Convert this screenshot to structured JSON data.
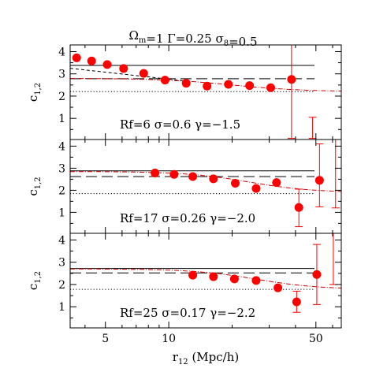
{
  "chart_data": {
    "type": "scatter",
    "title": "Ωm=1  Γ=0.25  σ8=0.5",
    "title_parts": {
      "omega_symbol": "Ω",
      "omega_sub": "m",
      "omega_val": "=1",
      "gamma": "Γ=0.25",
      "sigma_symbol": "σ",
      "sigma_sub": "8",
      "sigma_val": "=0.5"
    },
    "xlabel": {
      "base": "r",
      "sub": "12",
      "unit": "(Mpc/h)"
    },
    "xscale": "log",
    "xlim": [
      3.4,
      66
    ],
    "x_ticks": [
      5,
      10,
      50
    ],
    "colors": {
      "points": "#ff0000",
      "model": "#cc0000",
      "lines": "#000000"
    },
    "panels": [
      {
        "ylabel": {
          "base": "c",
          "sub": "1,2"
        },
        "ylim": [
          0.05,
          4.3
        ],
        "y_ticks": [
          1,
          2,
          3,
          4
        ],
        "annotation": "Rf=6   σ=0.6  γ=−1.5",
        "points": [
          {
            "x": 3.65,
            "y": 3.72
          },
          {
            "x": 4.3,
            "y": 3.58
          },
          {
            "x": 5.1,
            "y": 3.42
          },
          {
            "x": 6.1,
            "y": 3.24
          },
          {
            "x": 7.6,
            "y": 3.02
          },
          {
            "x": 9.6,
            "y": 2.72
          },
          {
            "x": 12.1,
            "y": 2.58
          },
          {
            "x": 15.2,
            "y": 2.45
          },
          {
            "x": 19.2,
            "y": 2.53
          },
          {
            "x": 24.2,
            "y": 2.47
          },
          {
            "x": 30.5,
            "y": 2.38
          },
          {
            "x": 38.3,
            "y": 2.75,
            "err_low": 0.1,
            "err_high": 4.3
          },
          {
            "x": 48.2,
            "err_low": 0.1,
            "err_high": 1.05
          }
        ],
        "hlines": {
          "solid": 3.38,
          "long_dash": 2.78,
          "dotted": 2.2
        },
        "model_curve": {
          "start": 2.8,
          "end": 2.2,
          "x_mid": 20,
          "width": 0.17
        },
        "short_dash": {
          "x0": 3.4,
          "y0": 3.25,
          "x1": 12,
          "y1": 2.68
        }
      },
      {
        "ylabel": {
          "base": "c",
          "sub": "1,2"
        },
        "ylim": [
          0.05,
          4.3
        ],
        "y_ticks": [
          1,
          2,
          3,
          4
        ],
        "annotation": "Rf=17   σ=0.26  γ=−2.0",
        "points": [
          {
            "x": 8.6,
            "y": 2.78
          },
          {
            "x": 10.6,
            "y": 2.72
          },
          {
            "x": 13.0,
            "y": 2.62
          },
          {
            "x": 16.3,
            "y": 2.52
          },
          {
            "x": 20.7,
            "y": 2.32
          },
          {
            "x": 26.0,
            "y": 2.08
          },
          {
            "x": 32.5,
            "y": 2.35
          },
          {
            "x": 41.5,
            "y": 1.22,
            "err_low": 0.35,
            "err_high": 2.05
          },
          {
            "x": 52.0,
            "y": 2.45,
            "err_low": 1.25,
            "err_high": 4.1
          },
          {
            "x": 62.0,
            "err_low": 1.2,
            "err_high": 4.3
          }
        ],
        "hlines": {
          "solid": 2.88,
          "long_dash": 2.62,
          "dotted": 1.85
        },
        "model_curve": {
          "start": 2.85,
          "end": 1.9,
          "x_mid": 24,
          "width": 0.15
        },
        "short_dash": null
      },
      {
        "ylabel": {
          "base": "c",
          "sub": "1,2"
        },
        "ylim": [
          0.05,
          4.3
        ],
        "y_ticks": [
          1,
          2,
          3,
          4
        ],
        "annotation": "Rf=25   σ=0.17   γ=−2.2",
        "points": [
          {
            "x": 13.0,
            "y": 2.42
          },
          {
            "x": 16.3,
            "y": 2.35
          },
          {
            "x": 20.5,
            "y": 2.25
          },
          {
            "x": 26.0,
            "y": 2.18
          },
          {
            "x": 33.0,
            "y": 1.85
          },
          {
            "x": 40.5,
            "y": 1.22,
            "err_low": 0.75,
            "err_high": 1.7
          },
          {
            "x": 50.5,
            "y": 2.45,
            "err_low": 1.1,
            "err_high": 3.8
          },
          {
            "x": 60.5,
            "err_low": 2.0,
            "err_high": 4.3
          }
        ],
        "hlines": {
          "solid": 2.72,
          "long_dash": 2.52,
          "dotted": 1.78
        },
        "model_curve": {
          "start": 2.7,
          "end": 1.78,
          "x_mid": 26,
          "width": 0.15
        },
        "short_dash": null
      }
    ]
  }
}
